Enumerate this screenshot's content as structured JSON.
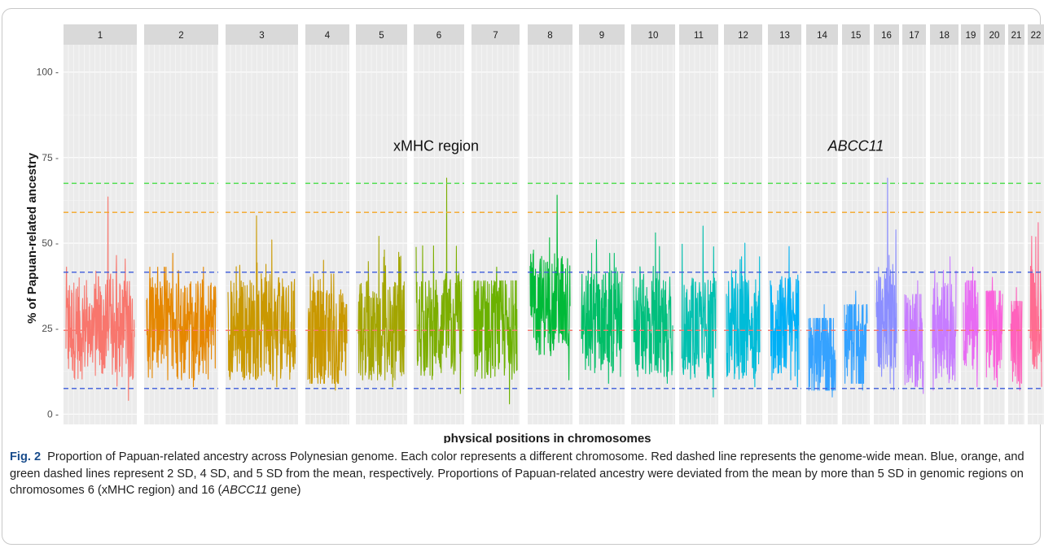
{
  "figure": {
    "caption_label": "Fig. 2",
    "caption_text_1": "Proportion of Papuan-related ancestry across Polynesian genome. Each color represents a different chromosome. Red dashed line represents the genome-wide mean. Blue, orange, and green dashed lines represent 2 SD, 4 SD, and 5 SD from the mean, respectively. Proportions of Papuan-related ancestry were deviated from the mean by more than 5 SD in genomic regions on chromosomes 6 (xMHC region) and 16 (",
    "caption_italic": "ABCC11",
    "caption_text_2": " gene)"
  },
  "chart_data": {
    "type": "line",
    "title": "",
    "xlabel": "physical positions in chromosomes",
    "ylabel": "% of Papuan-related ancestry",
    "ylim": [
      -3,
      108
    ],
    "yticks": [
      0,
      25,
      50,
      75,
      100
    ],
    "ytick_labels": [
      "0 -",
      "25 -",
      "50 -",
      "75 -",
      "100 -"
    ],
    "grid": true,
    "panels": [
      {
        "label": "1",
        "color": "#F8766D",
        "peak": 63.5,
        "min": 4,
        "base": 25
      },
      {
        "label": "2",
        "color": "#E58700",
        "peak": 47,
        "min": 8,
        "base": 25
      },
      {
        "label": "3",
        "color": "#C99800",
        "peak": 58,
        "min": 8,
        "base": 25
      },
      {
        "label": "4",
        "color": "#C99800",
        "peak": 45,
        "min": 7,
        "base": 22
      },
      {
        "label": "5",
        "color": "#A3A500",
        "peak": 52,
        "min": 8,
        "base": 24
      },
      {
        "label": "6",
        "color": "#7CAE00",
        "peak": 69,
        "min": 6,
        "base": 25
      },
      {
        "label": "7",
        "color": "#6BB100",
        "peak": 43,
        "min": 3,
        "base": 25
      },
      {
        "label": "8",
        "color": "#00BA38",
        "peak": 64,
        "min": 10,
        "base": 32
      },
      {
        "label": "9",
        "color": "#00BE67",
        "peak": 51,
        "min": 9,
        "base": 27
      },
      {
        "label": "10",
        "color": "#00BF7D",
        "peak": 53,
        "min": 9,
        "base": 26
      },
      {
        "label": "11",
        "color": "#00C0AF",
        "peak": 55,
        "min": 5,
        "base": 25
      },
      {
        "label": "12",
        "color": "#00BCD8",
        "peak": 50,
        "min": 8,
        "base": 25
      },
      {
        "label": "13",
        "color": "#00B0F6",
        "peak": 49,
        "min": 8,
        "base": 26
      },
      {
        "label": "14",
        "color": "#35A2FF",
        "peak": 32,
        "min": 5,
        "base": 17
      },
      {
        "label": "15",
        "color": "#35A2FF",
        "peak": 36,
        "min": 7,
        "base": 20
      },
      {
        "label": "16",
        "color": "#8B8EFF",
        "peak": 69,
        "min": 7,
        "base": 28
      },
      {
        "label": "17",
        "color": "#C77CFF",
        "peak": 39,
        "min": 6,
        "base": 22
      },
      {
        "label": "18",
        "color": "#C77CFF",
        "peak": 46,
        "min": 7,
        "base": 24
      },
      {
        "label": "19",
        "color": "#E76BF3",
        "peak": 43,
        "min": 8,
        "base": 28
      },
      {
        "label": "20",
        "color": "#FA62DB",
        "peak": 40,
        "min": 8,
        "base": 24
      },
      {
        "label": "21",
        "color": "#FF62BC",
        "peak": 37,
        "min": 7,
        "base": 22
      },
      {
        "label": "22",
        "color": "#FF6C91",
        "peak": 56,
        "min": 8,
        "base": 28
      }
    ],
    "reference_lines": [
      {
        "name": "mean",
        "y": 24.5,
        "color": "#F8766D"
      },
      {
        "name": "2 SD",
        "y": 41.5,
        "color": "#3B5BDB"
      },
      {
        "name": "2 SD lower",
        "y": 7.5,
        "color": "#3B5BDB"
      },
      {
        "name": "4 SD",
        "y": 59,
        "color": "#F5A623"
      },
      {
        "name": "5 SD",
        "y": 67.5,
        "color": "#44DD44"
      }
    ],
    "annotations": [
      {
        "text": "xMHC region",
        "panel": 6,
        "y": 77,
        "italic": false
      },
      {
        "text": "ABCC11",
        "panel": 15,
        "y": 77,
        "italic": true
      }
    ]
  }
}
